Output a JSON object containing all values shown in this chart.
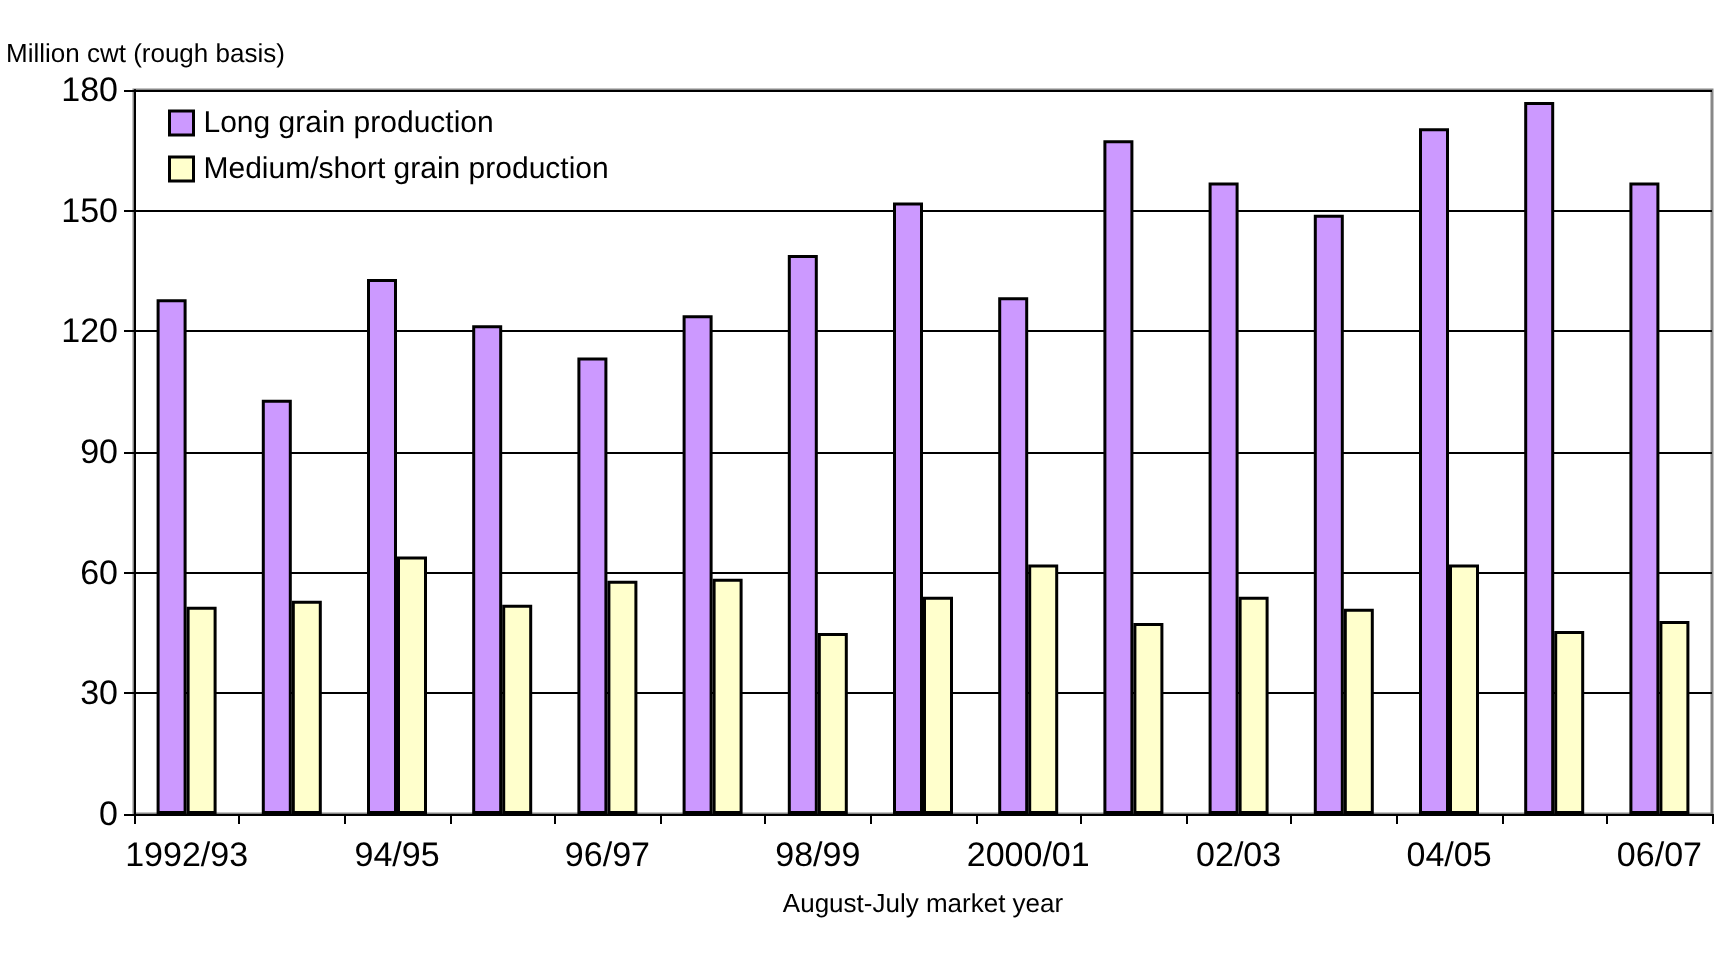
{
  "chart_data": {
    "type": "bar",
    "ylabel": "Million cwt (rough basis)",
    "xlabel": "August-July market year",
    "categories": [
      "1992/93",
      null,
      "94/95",
      null,
      "96/97",
      null,
      "98/99",
      null,
      "2000/01",
      null,
      "02/03",
      null,
      "04/05",
      null,
      "06/07"
    ],
    "series": [
      {
        "name": "Long grain production",
        "color": "#cc99ff",
        "values": [
          128,
          103,
          133,
          121.5,
          113.5,
          124,
          139,
          152,
          128.5,
          167.5,
          157,
          149,
          170.5,
          177,
          157
        ]
      },
      {
        "name": "Medium/short grain production",
        "color": "#ffffcc",
        "values": [
          51.5,
          53,
          64,
          52,
          58,
          58.5,
          45,
          54,
          62,
          47.5,
          54,
          51,
          62,
          45.5,
          48
        ]
      }
    ],
    "ylim": [
      0,
      180
    ],
    "yticks": [
      0,
      30,
      60,
      90,
      120,
      150,
      180
    ],
    "grid": "y",
    "legend": "top left"
  }
}
